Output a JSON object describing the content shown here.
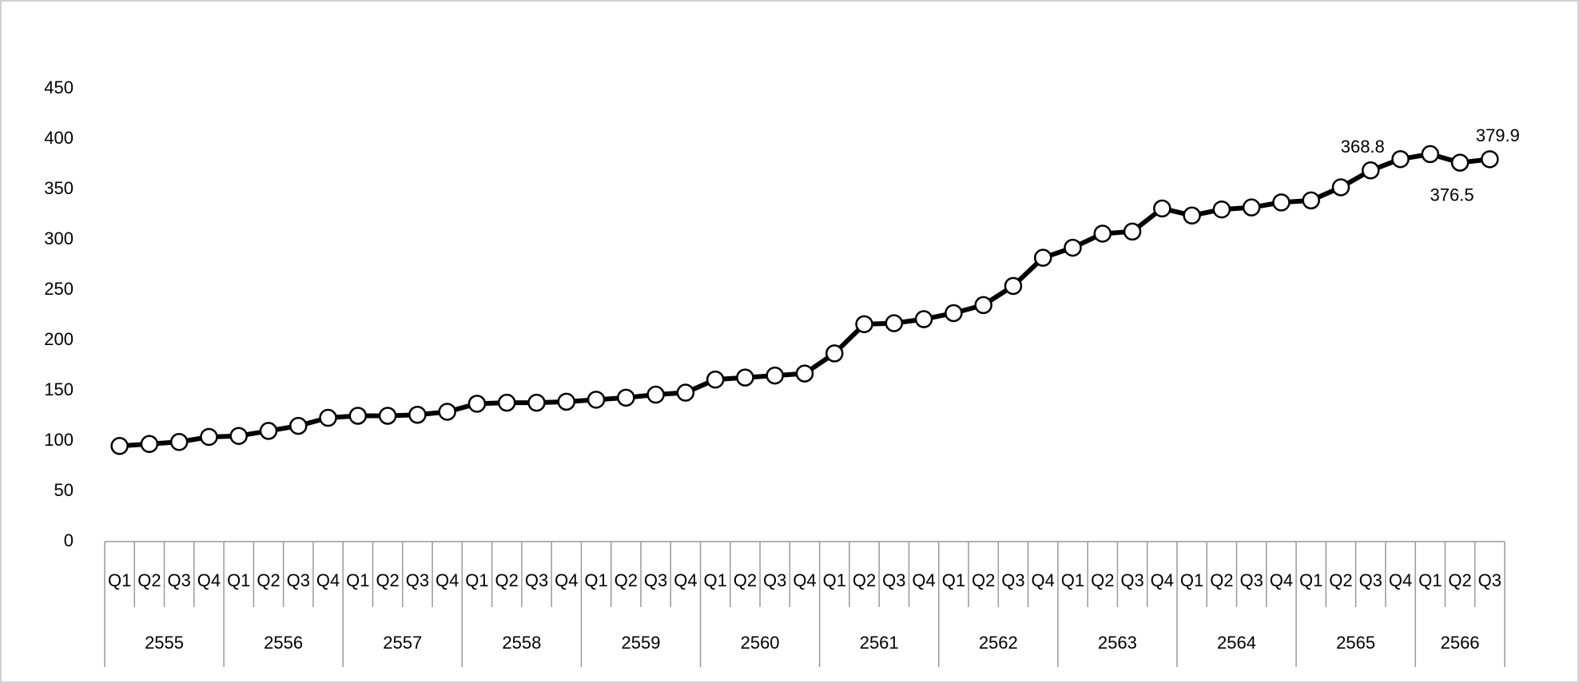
{
  "chart_data": {
    "type": "line",
    "groups": [
      {
        "name": "2555",
        "categories": [
          "Q1",
          "Q2",
          "Q3",
          "Q4"
        ]
      },
      {
        "name": "2556",
        "categories": [
          "Q1",
          "Q2",
          "Q3",
          "Q4"
        ]
      },
      {
        "name": "2557",
        "categories": [
          "Q1",
          "Q2",
          "Q3",
          "Q4"
        ]
      },
      {
        "name": "2558",
        "categories": [
          "Q1",
          "Q2",
          "Q3",
          "Q4"
        ]
      },
      {
        "name": "2559",
        "categories": [
          "Q1",
          "Q2",
          "Q3",
          "Q4"
        ]
      },
      {
        "name": "2560",
        "categories": [
          "Q1",
          "Q2",
          "Q3",
          "Q4"
        ]
      },
      {
        "name": "2561",
        "categories": [
          "Q1",
          "Q2",
          "Q3",
          "Q4"
        ]
      },
      {
        "name": "2562",
        "categories": [
          "Q1",
          "Q2",
          "Q3",
          "Q4"
        ]
      },
      {
        "name": "2563",
        "categories": [
          "Q1",
          "Q2",
          "Q3",
          "Q4"
        ]
      },
      {
        "name": "2564",
        "categories": [
          "Q1",
          "Q2",
          "Q3",
          "Q4"
        ]
      },
      {
        "name": "2565",
        "categories": [
          "Q1",
          "Q2",
          "Q3",
          "Q4"
        ]
      },
      {
        "name": "2566",
        "categories": [
          "Q1",
          "Q2",
          "Q3"
        ]
      }
    ],
    "series": [
      {
        "color": "#000000",
        "values": [
          95,
          97,
          99,
          104,
          105,
          110,
          115,
          123,
          125,
          125,
          126,
          129,
          137,
          138,
          138,
          139,
          141,
          143,
          146,
          148,
          161,
          163,
          165,
          167,
          187,
          216,
          217,
          221,
          227,
          235,
          254,
          282,
          292,
          306,
          308,
          331,
          324,
          330,
          332,
          337,
          339,
          352,
          368.8,
          380,
          385,
          376.5,
          379.9
        ],
        "value_labels": [
          null,
          null,
          null,
          null,
          null,
          null,
          null,
          null,
          null,
          null,
          null,
          null,
          null,
          null,
          null,
          null,
          null,
          null,
          null,
          null,
          null,
          null,
          null,
          null,
          null,
          null,
          null,
          null,
          null,
          null,
          null,
          null,
          null,
          null,
          null,
          null,
          null,
          null,
          null,
          null,
          null,
          null,
          "368.8",
          null,
          null,
          "376.5",
          "379.9"
        ]
      }
    ],
    "ylim": [
      0,
      450
    ],
    "yticks": [
      0,
      50,
      100,
      150,
      200,
      250,
      300,
      350,
      400,
      450
    ],
    "grid": false
  }
}
